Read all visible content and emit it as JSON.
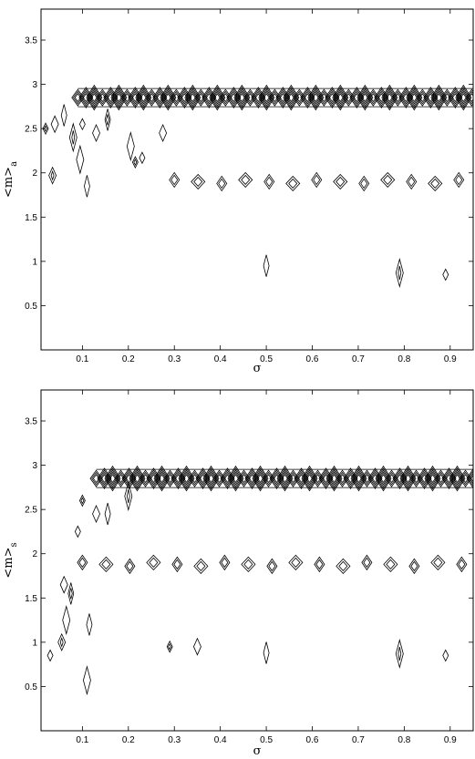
{
  "chart_data": [
    {
      "type": "contour",
      "panel": "top",
      "xlabel": "σ",
      "ylabel_main": "<m>",
      "ylabel_sub": "a",
      "xlim": [
        0.01,
        0.95
      ],
      "ylim": [
        0.0,
        3.85
      ],
      "xticks": [
        "0.1",
        "0.2",
        "0.3",
        "0.4",
        "0.5",
        "0.6",
        "0.7",
        "0.8",
        "0.9"
      ],
      "yticks": [
        "0.5",
        "1",
        "1.5",
        "2",
        "2.5",
        "3",
        "3.5"
      ],
      "contour_bands": [
        {
          "y": 2.85,
          "x_start": 0.09,
          "x_end": 0.95,
          "density": "dense"
        },
        {
          "y": 1.9,
          "x_start": 0.3,
          "x_end": 0.95,
          "density": "sparse"
        }
      ],
      "contour_blobs": [
        {
          "x": 0.02,
          "y": 2.5
        },
        {
          "x": 0.04,
          "y": 2.55
        },
        {
          "x": 0.06,
          "y": 2.65
        },
        {
          "x": 0.08,
          "y": 2.4
        },
        {
          "x": 0.1,
          "y": 2.55
        },
        {
          "x": 0.13,
          "y": 2.45
        },
        {
          "x": 0.155,
          "y": 2.6
        },
        {
          "x": 0.205,
          "y": 2.3
        },
        {
          "x": 0.23,
          "y": 2.17
        },
        {
          "x": 0.035,
          "y": 1.97
        },
        {
          "x": 0.11,
          "y": 1.85
        },
        {
          "x": 0.095,
          "y": 2.15
        },
        {
          "x": 0.215,
          "y": 2.12
        },
        {
          "x": 0.275,
          "y": 2.45
        },
        {
          "x": 0.5,
          "y": 0.95
        },
        {
          "x": 0.79,
          "y": 0.87
        },
        {
          "x": 0.89,
          "y": 0.85
        }
      ]
    },
    {
      "type": "contour",
      "panel": "bottom",
      "xlabel": "σ",
      "ylabel_main": "<m>",
      "ylabel_sub": "s",
      "xlim": [
        0.01,
        0.95
      ],
      "ylim": [
        0.0,
        3.85
      ],
      "xticks": [
        "0.1",
        "0.2",
        "0.3",
        "0.4",
        "0.5",
        "0.6",
        "0.7",
        "0.8",
        "0.9"
      ],
      "yticks": [
        "0.5",
        "1",
        "1.5",
        "2",
        "2.5",
        "3",
        "3.5"
      ],
      "contour_bands": [
        {
          "y": 2.85,
          "x_start": 0.13,
          "x_end": 0.95,
          "density": "dense"
        },
        {
          "y": 1.88,
          "x_start": 0.1,
          "x_end": 0.95,
          "density": "sparse"
        }
      ],
      "contour_blobs": [
        {
          "x": 0.1,
          "y": 2.6
        },
        {
          "x": 0.13,
          "y": 2.45
        },
        {
          "x": 0.155,
          "y": 2.45
        },
        {
          "x": 0.2,
          "y": 2.65
        },
        {
          "x": 0.09,
          "y": 2.25
        },
        {
          "x": 0.06,
          "y": 1.65
        },
        {
          "x": 0.075,
          "y": 1.55
        },
        {
          "x": 0.065,
          "y": 1.25
        },
        {
          "x": 0.03,
          "y": 0.85
        },
        {
          "x": 0.055,
          "y": 1.0
        },
        {
          "x": 0.115,
          "y": 1.2
        },
        {
          "x": 0.11,
          "y": 0.57
        },
        {
          "x": 0.29,
          "y": 0.95
        },
        {
          "x": 0.35,
          "y": 0.95
        },
        {
          "x": 0.5,
          "y": 0.88
        },
        {
          "x": 0.79,
          "y": 0.87
        },
        {
          "x": 0.89,
          "y": 0.85
        }
      ]
    }
  ]
}
